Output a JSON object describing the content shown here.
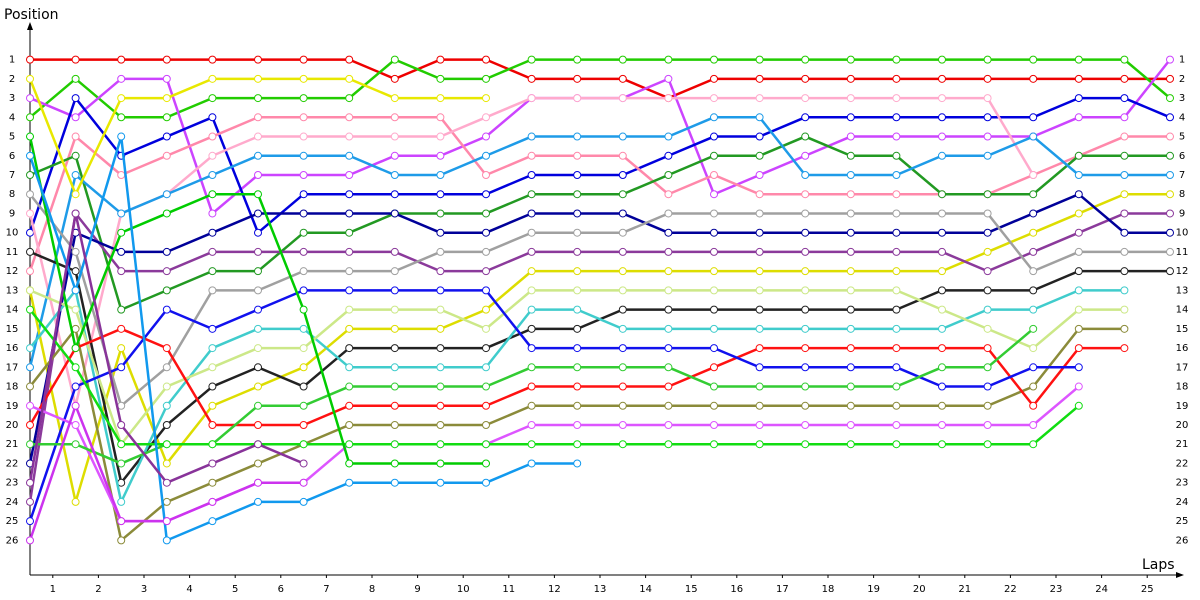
{
  "chart_data": {
    "type": "line",
    "y_label": "Position",
    "x_label": "Laps",
    "x": [
      0,
      1,
      2,
      3,
      4,
      5,
      6,
      7,
      8,
      9,
      10,
      11,
      12,
      13,
      14,
      15,
      16,
      17,
      18,
      19,
      20,
      21,
      22,
      23,
      24,
      25
    ],
    "xlim": [
      0,
      25
    ],
    "ylim": [
      27.8,
      -0.8
    ],
    "xticks": [
      {
        "value": 0.5,
        "label": "1"
      },
      {
        "value": 1.5,
        "label": "2"
      },
      {
        "value": 2.5,
        "label": "3"
      },
      {
        "value": 3.5,
        "label": "4"
      },
      {
        "value": 4.5,
        "label": "5"
      },
      {
        "value": 5.5,
        "label": "6"
      },
      {
        "value": 6.5,
        "label": "7"
      },
      {
        "value": 7.5,
        "label": "8"
      },
      {
        "value": 8.5,
        "label": "9"
      },
      {
        "value": 9.5,
        "label": "10"
      },
      {
        "value": 10.5,
        "label": "11"
      },
      {
        "value": 11.5,
        "label": "12"
      },
      {
        "value": 12.5,
        "label": "13"
      },
      {
        "value": 13.5,
        "label": "14"
      },
      {
        "value": 14.5,
        "label": "15"
      },
      {
        "value": 15.5,
        "label": "16"
      },
      {
        "value": 16.5,
        "label": "17"
      },
      {
        "value": 17.5,
        "label": "18"
      },
      {
        "value": 18.5,
        "label": "19"
      },
      {
        "value": 19.5,
        "label": "20"
      },
      {
        "value": 20.5,
        "label": "21"
      },
      {
        "value": 21.5,
        "label": "22"
      },
      {
        "value": 22.5,
        "label": "23"
      },
      {
        "value": 23.5,
        "label": "24"
      },
      {
        "value": 24.5,
        "label": "25"
      }
    ],
    "yticks": [
      1,
      2,
      3,
      4,
      5,
      6,
      7,
      8,
      9,
      10,
      11,
      12,
      13,
      14,
      15,
      16,
      17,
      18,
      19,
      20,
      21,
      22,
      23,
      24,
      25,
      26
    ],
    "series": [
      {
        "color": "#ee0000",
        "values": [
          1,
          1,
          1,
          1,
          1,
          1,
          1,
          1,
          2,
          1,
          1,
          2,
          2,
          2,
          3,
          2,
          2,
          2,
          2,
          2,
          2,
          2,
          2,
          2,
          2,
          2
        ]
      },
      {
        "color": "#22cc00",
        "values": [
          4,
          2,
          4,
          4,
          3,
          3,
          3,
          3,
          1,
          2,
          2,
          1,
          1,
          1,
          1,
          1,
          1,
          1,
          1,
          1,
          1,
          1,
          1,
          1,
          1,
          3
        ]
      },
      {
        "color": "#cc44ff",
        "values": [
          3,
          4,
          2,
          2,
          9,
          7,
          7,
          7,
          6,
          6,
          5,
          3,
          3,
          3,
          2,
          8,
          7,
          6,
          5,
          5,
          5,
          5,
          5,
          4,
          4,
          1
        ]
      },
      {
        "color": "#0000dd",
        "values": [
          10,
          3,
          6,
          5,
          4,
          10,
          8,
          8,
          8,
          8,
          8,
          7,
          7,
          7,
          6,
          5,
          5,
          4,
          4,
          4,
          4,
          4,
          4,
          3,
          3,
          4
        ]
      },
      {
        "color": "#ff88aa",
        "values": [
          12,
          5,
          7,
          6,
          5,
          4,
          4,
          4,
          4,
          4,
          7,
          6,
          6,
          6,
          8,
          7,
          8,
          8,
          8,
          8,
          8,
          8,
          7,
          6,
          5,
          5
        ]
      },
      {
        "color": "#ffaacc",
        "values": [
          9,
          19,
          9,
          8,
          6,
          5,
          5,
          5,
          5,
          5,
          4,
          3,
          3,
          3,
          3,
          3,
          3,
          3,
          3,
          3,
          3,
          3,
          7,
          null,
          null,
          null
        ]
      },
      {
        "color": "#229922",
        "values": [
          7,
          6,
          14,
          13,
          12,
          12,
          10,
          10,
          9,
          9,
          9,
          8,
          8,
          8,
          7,
          6,
          6,
          5,
          6,
          6,
          8,
          8,
          8,
          6,
          6,
          6
        ]
      },
      {
        "color": "#1e9be8",
        "values": [
          17,
          7,
          9,
          8,
          7,
          6,
          6,
          6,
          7,
          7,
          6,
          5,
          5,
          5,
          5,
          4,
          4,
          7,
          7,
          7,
          6,
          6,
          5,
          7,
          7,
          7
        ]
      },
      {
        "color": "#e8e800",
        "values": [
          2,
          8,
          3,
          3,
          2,
          2,
          2,
          2,
          3,
          3,
          3,
          null,
          null,
          null,
          null,
          null,
          null,
          null,
          null,
          null,
          null,
          null,
          null,
          null,
          null,
          null
        ]
      },
      {
        "color": "#dddd00",
        "values": [
          13,
          24,
          16,
          22,
          19,
          18,
          17,
          15,
          15,
          15,
          14,
          12,
          12,
          12,
          12,
          12,
          12,
          12,
          12,
          12,
          12,
          11,
          10,
          9,
          8,
          8
        ]
      },
      {
        "color": "#8b3a9b",
        "values": [
          24,
          9,
          12,
          12,
          11,
          11,
          11,
          11,
          11,
          12,
          12,
          11,
          11,
          11,
          11,
          11,
          11,
          11,
          11,
          11,
          11,
          12,
          11,
          10,
          9,
          9
        ]
      },
      {
        "color": "#000099",
        "values": [
          22,
          10,
          11,
          11,
          10,
          9,
          9,
          9,
          9,
          10,
          10,
          9,
          9,
          9,
          10,
          10,
          10,
          10,
          10,
          10,
          10,
          10,
          9,
          8,
          10,
          10
        ]
      },
      {
        "color": "#a0a0a0",
        "values": [
          8,
          11,
          19,
          17,
          13,
          13,
          12,
          12,
          12,
          11,
          11,
          10,
          10,
          10,
          9,
          9,
          9,
          9,
          9,
          9,
          9,
          9,
          12,
          11,
          11,
          11
        ]
      },
      {
        "color": "#222222",
        "values": [
          11,
          12,
          23,
          20,
          18,
          17,
          18,
          16,
          16,
          16,
          16,
          15,
          15,
          14,
          14,
          14,
          14,
          14,
          14,
          14,
          13,
          13,
          13,
          12,
          12,
          12
        ]
      },
      {
        "color": "#40cccc",
        "values": [
          16,
          13,
          24,
          19,
          16,
          15,
          15,
          17,
          17,
          17,
          17,
          14,
          14,
          15,
          15,
          15,
          15,
          15,
          15,
          15,
          15,
          14,
          14,
          13,
          13,
          null
        ]
      },
      {
        "color": "#cce888",
        "values": [
          13,
          14,
          21,
          18,
          17,
          16,
          16,
          14,
          14,
          14,
          15,
          13,
          13,
          13,
          13,
          13,
          13,
          13,
          13,
          13,
          14,
          15,
          16,
          14,
          14,
          null
        ]
      },
      {
        "color": "#8b8b3a",
        "values": [
          18,
          15,
          26,
          24,
          23,
          22,
          21,
          20,
          20,
          20,
          20,
          19,
          19,
          19,
          19,
          19,
          19,
          19,
          19,
          19,
          19,
          19,
          18,
          15,
          15,
          null
        ]
      },
      {
        "color": "#ff1111",
        "values": [
          20,
          16,
          15,
          16,
          20,
          20,
          20,
          19,
          19,
          19,
          19,
          18,
          18,
          18,
          18,
          17,
          16,
          16,
          16,
          16,
          16,
          16,
          19,
          16,
          16,
          null
        ]
      },
      {
        "color": "#1111ee",
        "values": [
          25,
          18,
          17,
          14,
          15,
          14,
          13,
          13,
          13,
          13,
          13,
          16,
          16,
          16,
          16,
          16,
          17,
          17,
          17,
          17,
          18,
          18,
          17,
          17,
          null,
          null
        ]
      },
      {
        "color": "#dd55ff",
        "values": [
          19,
          20,
          25,
          25,
          24,
          23,
          23,
          21,
          21,
          21,
          21,
          20,
          20,
          20,
          20,
          20,
          20,
          20,
          20,
          20,
          20,
          20,
          20,
          18,
          null,
          null
        ]
      },
      {
        "color": "#33cc33",
        "values": [
          21,
          21,
          22,
          21,
          21,
          19,
          19,
          18,
          18,
          18,
          18,
          17,
          17,
          17,
          17,
          18,
          18,
          18,
          18,
          18,
          17,
          17,
          15,
          null,
          null,
          null
        ]
      },
      {
        "color": "#11dd11",
        "values": [
          14,
          17,
          21,
          21,
          21,
          21,
          21,
          21,
          21,
          21,
          21,
          21,
          21,
          21,
          21,
          21,
          21,
          21,
          21,
          21,
          21,
          21,
          21,
          19,
          null,
          null
        ]
      },
      {
        "color": "#00cc00",
        "values": [
          5,
          16,
          10,
          9,
          8,
          8,
          14,
          22,
          22,
          22,
          22,
          null,
          null,
          null,
          null,
          null,
          null,
          null,
          null,
          null,
          null,
          null,
          null,
          null,
          null,
          null
        ]
      },
      {
        "color": "#1199ee",
        "values": [
          6,
          13,
          5,
          26,
          25,
          24,
          24,
          23,
          23,
          23,
          23,
          22,
          22,
          null,
          null,
          null,
          null,
          null,
          null,
          null,
          null,
          null,
          null,
          null,
          null,
          null
        ]
      },
      {
        "color": "#883399",
        "values": [
          23,
          9,
          20,
          23,
          22,
          21,
          22,
          null,
          null,
          null,
          null,
          null,
          null,
          null,
          null,
          null,
          null,
          null,
          null,
          null,
          null,
          null,
          null,
          null,
          null,
          null
        ]
      },
      {
        "color": "#cc33ee",
        "values": [
          26,
          19,
          25,
          25,
          24,
          23,
          23,
          null,
          null,
          null,
          null,
          null,
          null,
          null,
          null,
          null,
          null,
          null,
          null,
          null,
          null,
          null,
          null,
          null,
          null,
          null
        ]
      }
    ]
  }
}
